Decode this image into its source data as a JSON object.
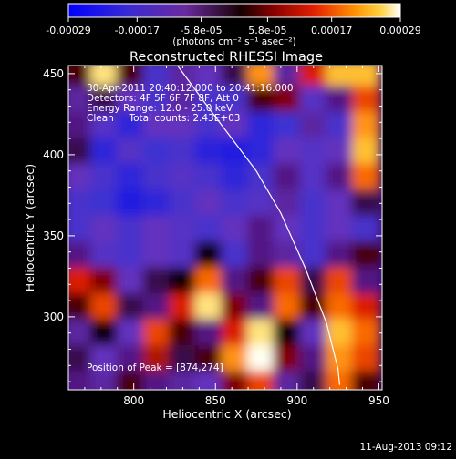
{
  "chart_data": {
    "type": "heatmap",
    "title": "Reconstructed RHESSI Image",
    "xlabel": "Heliocentric X (arcsec)",
    "ylabel": "Heliocentric Y (arcsec)",
    "xlim": [
      760,
      952
    ],
    "ylim": [
      255,
      455
    ],
    "xticks": [
      800,
      850,
      900,
      950
    ],
    "yticks": [
      300,
      350,
      400,
      450
    ],
    "colorbar": {
      "ticks": [
        "-0.00029",
        "-0.00017",
        "-5.8e-05",
        "5.8e-05",
        "0.00017",
        "0.00029"
      ],
      "tick_values": [
        -0.00029,
        -0.00017,
        -5.8e-05,
        5.8e-05,
        0.00017,
        0.00029
      ],
      "range": [
        -0.00029,
        0.00029
      ],
      "unit_label": "(photons cm⁻² s⁻¹ asec⁻²)"
    },
    "info_lines": [
      "30-Apr-2011 20:40:12.000 to 20:41:16.000",
      "Detectors: 4F 5F 6F 7F 8F, Att 0",
      "Energy Range: 12.0 - 25.0 keV",
      "Clean     Total counts: 2.43E+03"
    ],
    "peak_label": "Position of Peak = [874,274]",
    "peak": [
      874,
      274
    ],
    "limb_line": [
      [
        826,
        456
      ],
      [
        845,
        430
      ],
      [
        860,
        410
      ],
      [
        875,
        390
      ],
      [
        890,
        364
      ],
      [
        905,
        330
      ],
      [
        918,
        296
      ],
      [
        925,
        268
      ],
      [
        926,
        258
      ]
    ],
    "grid_x": [
      766,
      782,
      798,
      814,
      830,
      846,
      862,
      878,
      894,
      910,
      926,
      942
    ],
    "grid_y": [
      450,
      434,
      418,
      402,
      386,
      370,
      354,
      338,
      322,
      306,
      290,
      274,
      258
    ],
    "grid_values": [
      [
        0.55,
        0.95,
        0.55,
        0.2,
        0.35,
        0.3,
        0.45,
        0.85,
        0.35,
        0.7,
        0.9,
        0.9
      ],
      [
        0.35,
        0.45,
        0.3,
        0.2,
        0.35,
        0.2,
        0.2,
        0.55,
        0.6,
        0.25,
        0.4,
        0.75
      ],
      [
        0.4,
        0.25,
        0.1,
        0.3,
        0.3,
        0.2,
        0.3,
        0.1,
        0.15,
        0.35,
        0.2,
        0.85
      ],
      [
        0.45,
        0.1,
        0.25,
        0.15,
        0.2,
        0.08,
        0.05,
        0.1,
        0.3,
        0.25,
        0.3,
        0.9
      ],
      [
        0.3,
        0.2,
        0.1,
        0.2,
        0.25,
        0.2,
        0.1,
        0.2,
        0.4,
        0.25,
        0.4,
        0.8
      ],
      [
        0.2,
        0.15,
        0.05,
        0.1,
        0.2,
        0.3,
        0.2,
        0.25,
        0.35,
        0.2,
        0.3,
        0.45
      ],
      [
        0.2,
        0.3,
        0.2,
        0.3,
        0.25,
        0.2,
        0.3,
        0.4,
        0.3,
        0.2,
        0.3,
        0.2
      ],
      [
        0.4,
        0.25,
        0.2,
        0.3,
        0.25,
        0.5,
        0.2,
        0.4,
        0.35,
        0.2,
        0.4,
        0.55
      ],
      [
        0.7,
        0.6,
        0.3,
        0.45,
        0.5,
        0.8,
        0.4,
        0.55,
        0.75,
        0.45,
        0.75,
        0.4
      ],
      [
        0.55,
        0.75,
        0.45,
        0.4,
        0.7,
        0.95,
        0.6,
        0.4,
        0.8,
        0.55,
        0.8,
        0.7
      ],
      [
        0.35,
        0.5,
        0.3,
        0.75,
        0.55,
        0.4,
        0.7,
        0.95,
        0.5,
        0.3,
        0.9,
        0.8
      ],
      [
        0.45,
        0.3,
        0.4,
        0.65,
        0.45,
        0.55,
        0.85,
        1.0,
        0.6,
        0.4,
        0.85,
        0.75
      ],
      [
        0.4,
        0.35,
        0.55,
        0.4,
        0.35,
        0.3,
        0.6,
        0.75,
        0.35,
        0.45,
        0.8,
        0.55
      ]
    ]
  },
  "footer": {
    "timestamp": "11-Aug-2013 09:12"
  }
}
